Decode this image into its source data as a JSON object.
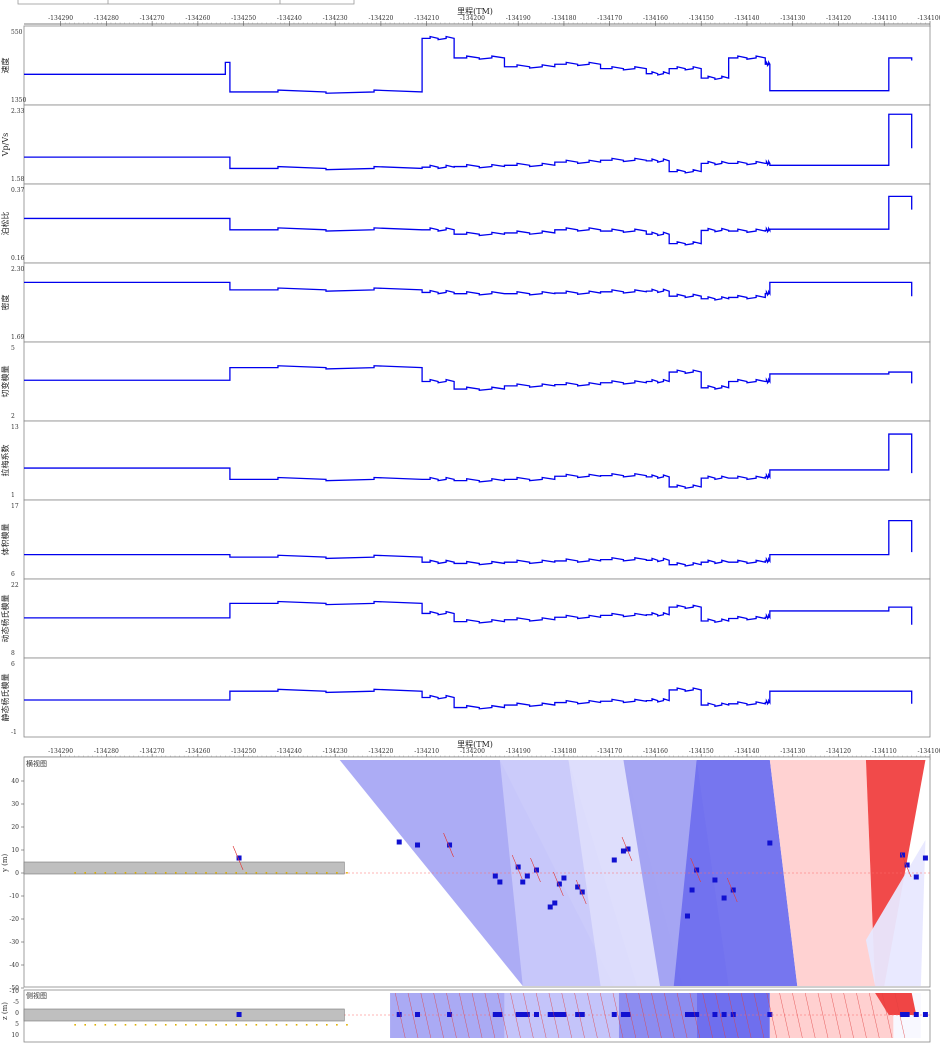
{
  "top_axis": {
    "title": "里程(TM)",
    "ticks": [
      "-134290",
      "-134280",
      "-134270",
      "-134260",
      "-134250",
      "-134240",
      "-134230",
      "-134220",
      "-134210",
      "-134200",
      "-134190",
      "-134180",
      "-134170",
      "-134160",
      "-134150",
      "-134140",
      "-134130",
      "-134120",
      "-134110",
      "-134100"
    ]
  },
  "bottom_axis": {
    "title": "里程(TM)",
    "ticks": [
      "-134290",
      "-134280",
      "-134270",
      "-134260",
      "-134250",
      "-134240",
      "-134230",
      "-134220",
      "-134210",
      "-134200",
      "-134190",
      "-134180",
      "-134170",
      "-134160",
      "-134150",
      "-134140",
      "-134130",
      "-134120",
      "-134110",
      "-134100"
    ]
  },
  "colors": {
    "line": "#0000ee",
    "panel_border": "#888888",
    "grid_red": "#ff6b6b",
    "blue_dark": "#4d4df0",
    "blue_mid": "#8888f5",
    "blue_light": "#c4c4fa",
    "pink": "#ffcccc",
    "red": "#f04545",
    "gray_box": "#bfbfbf",
    "gold": "#e0b000"
  },
  "chart_data": {
    "type": "line",
    "x_range": [
      -134294,
      -134096
    ],
    "panels": [
      {
        "ylabel": "速度",
        "ymax": "550",
        "ymin": "1350",
        "yr": [
          0,
          1
        ],
        "v": [
          0.36,
          0.55,
          0.08,
          0.93,
          0.62,
          0.48,
          0.52,
          0.45,
          0.37,
          0.45,
          0.3,
          0.62,
          0.52,
          0.1,
          0.62,
          0.58
        ]
      },
      {
        "ylabel": "Vp/Vs",
        "ymax": "2.33",
        "ymin": "1.58",
        "yr": [
          0,
          1
        ],
        "v": [
          0.3,
          0.3,
          0.12,
          0.14,
          0.15,
          0.17,
          0.22,
          0.25,
          0.24,
          0.07,
          0.2,
          0.2,
          0.2,
          0.17,
          0.98,
          0.44
        ]
      },
      {
        "ylabel": "泊松比",
        "ymax": "0.37",
        "ymin": "0.16",
        "yr": [
          0,
          1
        ],
        "v": [
          0.58,
          0.58,
          0.4,
          0.4,
          0.33,
          0.35,
          0.4,
          0.38,
          0.33,
          0.18,
          0.39,
          0.38,
          0.39,
          0.41,
          0.93,
          0.72
        ]
      },
      {
        "ylabel": "密度",
        "ymax": "2.30",
        "ymin": "1.69",
        "yr": [
          0,
          1
        ],
        "v": [
          0.82,
          0.82,
          0.7,
          0.66,
          0.64,
          0.64,
          0.65,
          0.67,
          0.68,
          0.6,
          0.56,
          0.58,
          0.64,
          0.82,
          0.82,
          0.6
        ]
      },
      {
        "ylabel": "切变模量",
        "ymax": "5",
        "ymin": "2",
        "yr": [
          0,
          1
        ],
        "v": [
          0.52,
          0.52,
          0.72,
          0.5,
          0.38,
          0.43,
          0.45,
          0.48,
          0.5,
          0.65,
          0.4,
          0.5,
          0.5,
          0.62,
          0.65,
          0.47
        ]
      },
      {
        "ylabel": "拉梅系数",
        "ymax": "13",
        "ymin": "1",
        "yr": [
          0,
          1
        ],
        "v": [
          0.38,
          0.38,
          0.2,
          0.2,
          0.18,
          0.2,
          0.25,
          0.26,
          0.24,
          0.08,
          0.22,
          0.22,
          0.24,
          0.35,
          0.92,
          0.3
        ]
      },
      {
        "ylabel": "体积模量",
        "ymax": "17",
        "ymin": "6",
        "yr": [
          0,
          1
        ],
        "v": [
          0.26,
          0.26,
          0.22,
          0.14,
          0.12,
          0.14,
          0.16,
          0.18,
          0.17,
          0.1,
          0.14,
          0.14,
          0.16,
          0.26,
          0.8,
          0.3
        ]
      },
      {
        "ylabel": "动态杨氏模量",
        "ymax": "22",
        "ymin": "8",
        "yr": [
          0,
          1
        ],
        "v": [
          0.51,
          0.51,
          0.74,
          0.58,
          0.45,
          0.48,
          0.52,
          0.55,
          0.56,
          0.68,
          0.46,
          0.5,
          0.52,
          0.62,
          0.68,
          0.4
        ]
      },
      {
        "ylabel": "静态杨氏模量",
        "ymax": "6",
        "ymin": "-1",
        "yr": [
          0,
          1
        ],
        "v": [
          0.46,
          0.46,
          0.6,
          0.5,
          0.34,
          0.38,
          0.42,
          0.44,
          0.45,
          0.62,
          0.38,
          0.4,
          0.42,
          0.6,
          0.6,
          0.4
        ]
      }
    ],
    "x_knots": [
      -134294,
      -134250,
      -134249,
      -134207,
      -134200,
      -134189,
      -134178,
      -134168,
      -134158,
      -134153,
      -134146,
      -134140,
      -134132,
      -134131,
      -134105,
      -134100
    ],
    "plan_view": {
      "label": "横视图",
      "ylabel": "y (m)",
      "y_ticks": [
        "40",
        "30",
        "20",
        "10",
        "0",
        "-10",
        "-20",
        "-30",
        "-40",
        "-50"
      ],
      "ylim": [
        -50,
        45
      ]
    },
    "profile_view": {
      "label": "侧视图",
      "ylabel": "z (m)",
      "y_ticks": [
        "-10",
        "-5",
        "0",
        "5",
        "10"
      ]
    }
  }
}
